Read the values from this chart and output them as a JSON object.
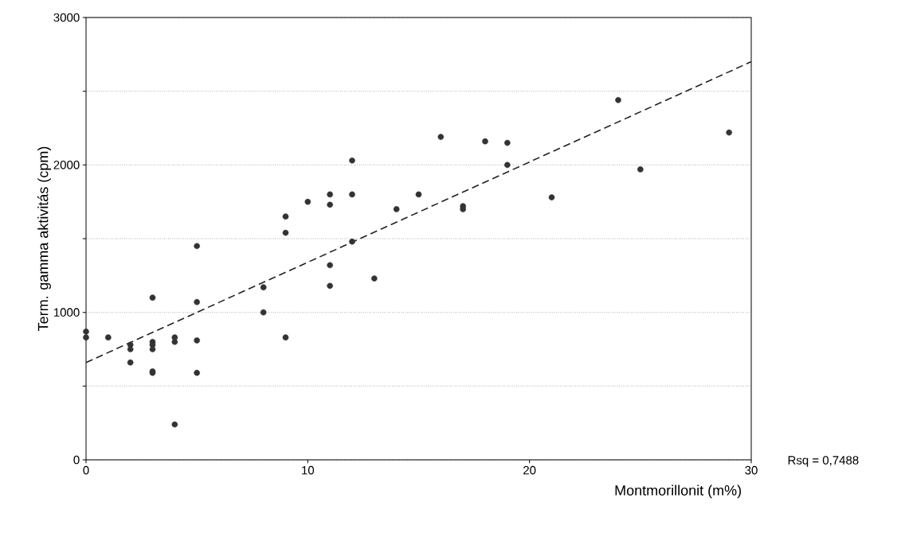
{
  "chart_data": {
    "type": "scatter",
    "xlabel": "Montmorillonit (m%)",
    "ylabel": "Term. gamma aktivitás (cpm)",
    "annotations": [
      "Rsq = 0,7488"
    ],
    "xlim": [
      0,
      30
    ],
    "xticks": [
      0,
      10,
      20,
      30
    ],
    "ylim": [
      0,
      3000
    ],
    "yticks": [
      0,
      {
        "value": 500,
        "label": null
      },
      1000,
      {
        "value": 1500,
        "label": null
      },
      2000,
      {
        "value": 2500,
        "label": null
      },
      3000
    ],
    "grid": "y",
    "series": [
      {
        "color": "#333333",
        "marker": "circle",
        "x": [
          0,
          0,
          1,
          2,
          2,
          2,
          3,
          3,
          3,
          3,
          3,
          3,
          4,
          4,
          4,
          5,
          5,
          5,
          5,
          8,
          8,
          9,
          9,
          9,
          10,
          11,
          11,
          11,
          11,
          12,
          12,
          12,
          13,
          14,
          15,
          16,
          17,
          17,
          18,
          19,
          19,
          21,
          24,
          25,
          29
        ],
        "values": [
          870,
          830,
          830,
          780,
          750,
          660,
          1100,
          800,
          780,
          750,
          600,
          590,
          830,
          800,
          240,
          1450,
          1070,
          810,
          590,
          1170,
          1000,
          1650,
          1540,
          830,
          1750,
          1800,
          1730,
          1320,
          1180,
          2030,
          1800,
          1480,
          1230,
          1700,
          1800,
          2190,
          1720,
          1700,
          2160,
          2150,
          2000,
          1780,
          2440,
          1970,
          2220
        ]
      },
      {
        "type": "line",
        "color": "#222222",
        "line_style": "dashed",
        "marker": "none",
        "x": [
          0,
          30
        ],
        "values": [
          660,
          2700
        ]
      }
    ]
  }
}
